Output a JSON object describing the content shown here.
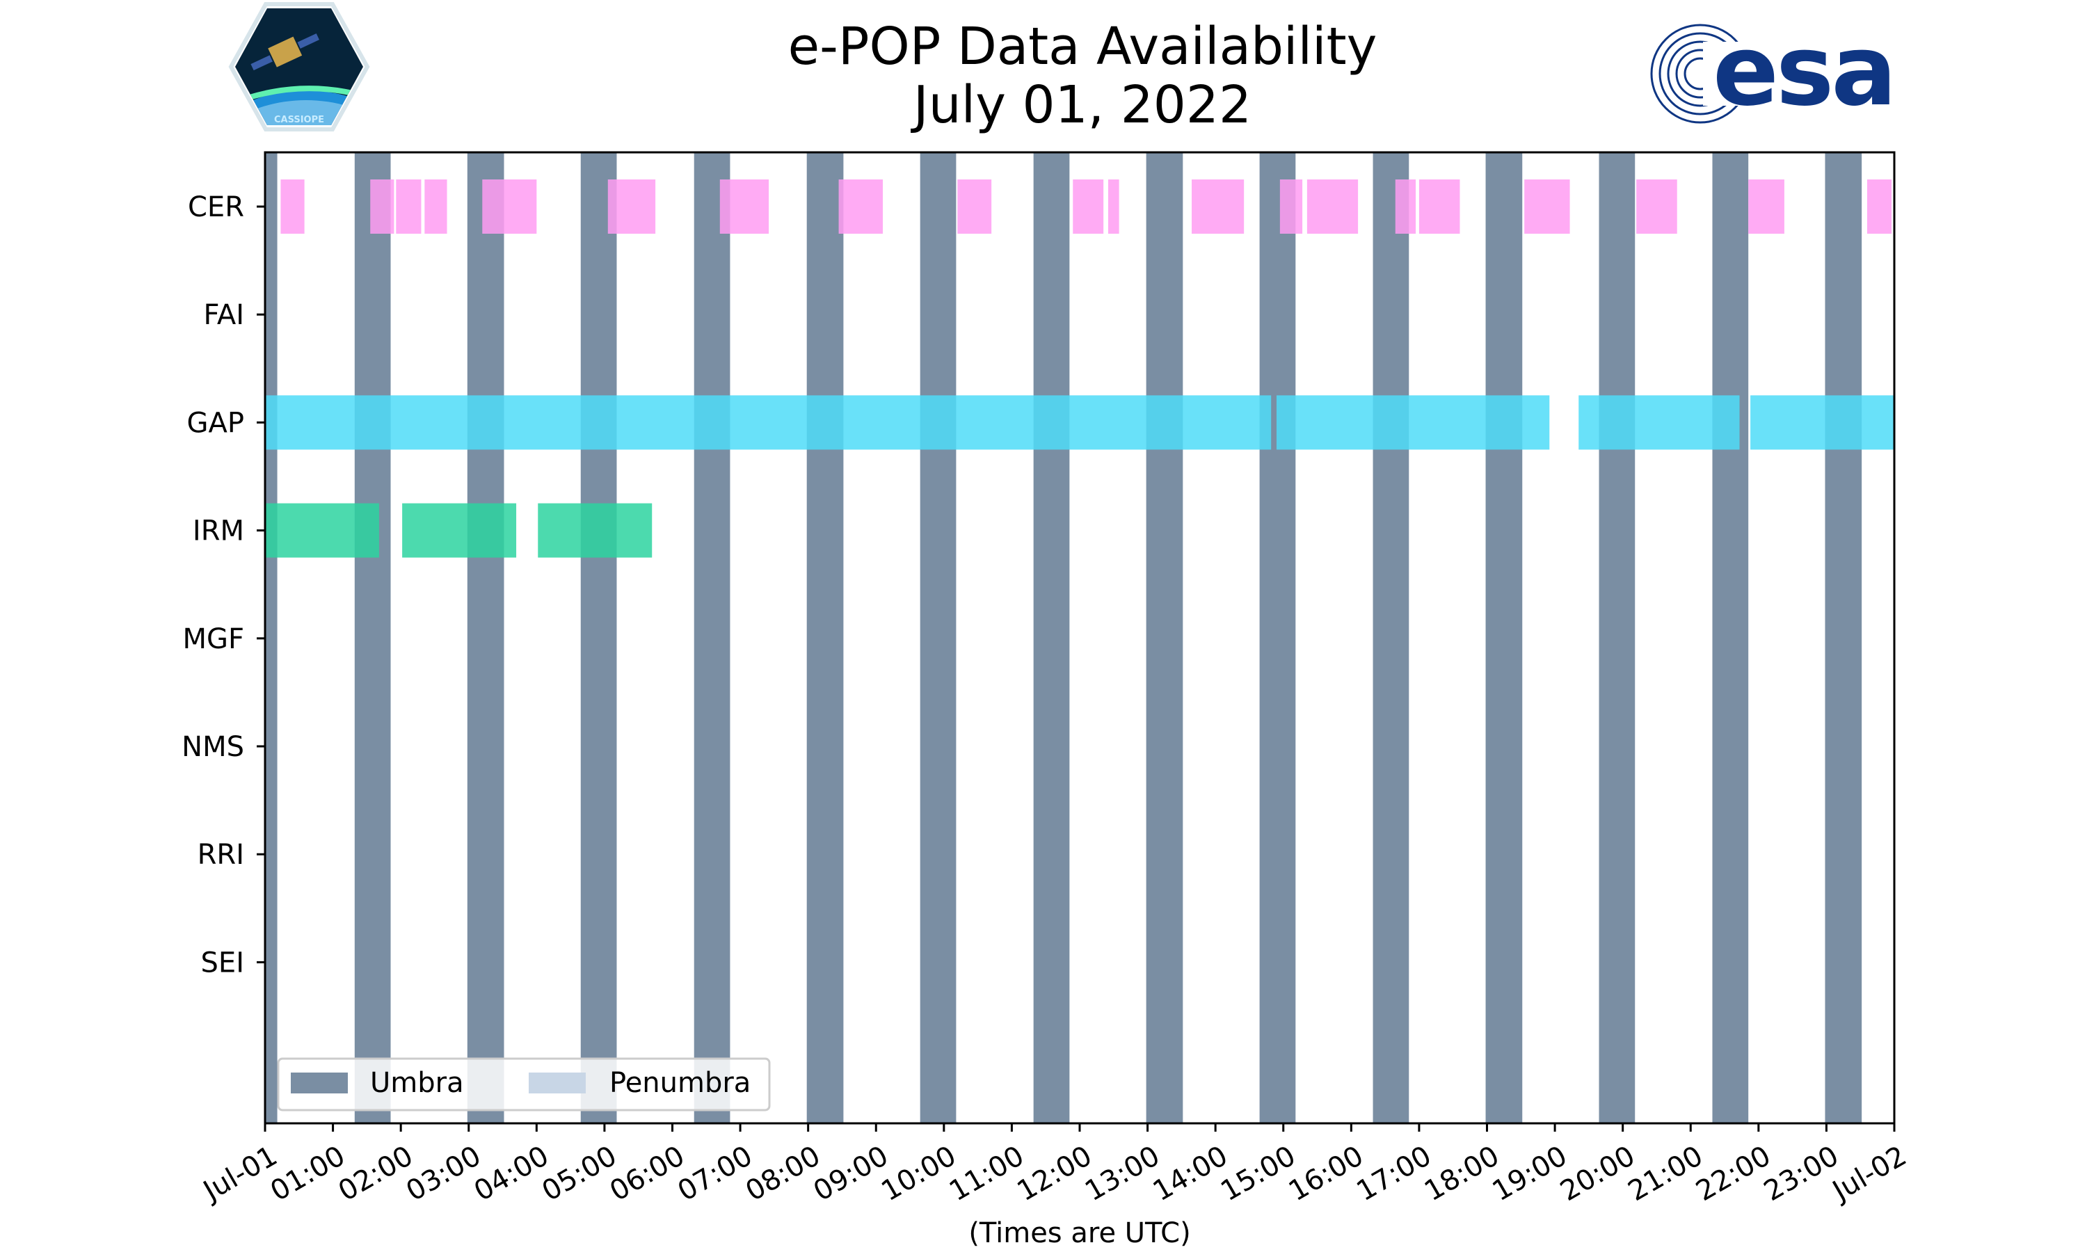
{
  "chart_data": {
    "type": "timeline",
    "title_line1": "e-POP Data Availability",
    "title_line2": "July 01, 2022",
    "xlabel": "(Times are UTC)",
    "x_unit": "hours since 2022-07-01 00:00 UTC",
    "xlim": [
      0,
      24
    ],
    "x_ticks": [
      {
        "value": 0,
        "label": "Jul-01"
      },
      {
        "value": 1,
        "label": "01:00"
      },
      {
        "value": 2,
        "label": "02:00"
      },
      {
        "value": 3,
        "label": "03:00"
      },
      {
        "value": 4,
        "label": "04:00"
      },
      {
        "value": 5,
        "label": "05:00"
      },
      {
        "value": 6,
        "label": "06:00"
      },
      {
        "value": 7,
        "label": "07:00"
      },
      {
        "value": 8,
        "label": "08:00"
      },
      {
        "value": 9,
        "label": "09:00"
      },
      {
        "value": 10,
        "label": "10:00"
      },
      {
        "value": 11,
        "label": "11:00"
      },
      {
        "value": 12,
        "label": "12:00"
      },
      {
        "value": 13,
        "label": "13:00"
      },
      {
        "value": 14,
        "label": "14:00"
      },
      {
        "value": 15,
        "label": "15:00"
      },
      {
        "value": 16,
        "label": "16:00"
      },
      {
        "value": 17,
        "label": "17:00"
      },
      {
        "value": 18,
        "label": "18:00"
      },
      {
        "value": 19,
        "label": "19:00"
      },
      {
        "value": 20,
        "label": "20:00"
      },
      {
        "value": 21,
        "label": "21:00"
      },
      {
        "value": 22,
        "label": "22:00"
      },
      {
        "value": 23,
        "label": "23:00"
      },
      {
        "value": 24,
        "label": "Jul-02"
      }
    ],
    "instruments": [
      "CER",
      "FAI",
      "GAP",
      "IRM",
      "MGF",
      "NMS",
      "RRI",
      "SEI"
    ],
    "legend": {
      "position": "lower-left",
      "entries": [
        {
          "label": "Umbra",
          "color": "#7a8ea3"
        },
        {
          "label": "Penumbra",
          "color": "#c8d6e6"
        }
      ]
    },
    "umbra_intervals": [
      [
        0.0,
        0.18
      ],
      [
        1.32,
        1.85
      ],
      [
        2.98,
        3.52
      ],
      [
        4.65,
        5.18
      ],
      [
        6.32,
        6.85
      ],
      [
        7.98,
        8.52
      ],
      [
        9.65,
        10.18
      ],
      [
        11.32,
        11.85
      ],
      [
        12.98,
        13.52
      ],
      [
        14.65,
        15.18
      ],
      [
        16.32,
        16.85
      ],
      [
        17.98,
        18.52
      ],
      [
        19.65,
        20.18
      ],
      [
        21.32,
        21.85
      ],
      [
        22.98,
        23.52
      ]
    ],
    "series": [
      {
        "name": "CER",
        "color": "#ff9cf2",
        "intervals": [
          [
            0.23,
            0.58
          ],
          [
            1.55,
            1.9
          ],
          [
            1.93,
            2.3
          ],
          [
            2.35,
            2.68
          ],
          [
            3.2,
            4.0
          ],
          [
            5.05,
            5.75
          ],
          [
            6.7,
            7.42
          ],
          [
            8.45,
            9.1
          ],
          [
            10.2,
            10.7
          ],
          [
            11.9,
            12.35
          ],
          [
            12.42,
            12.58
          ],
          [
            13.65,
            14.42
          ],
          [
            14.95,
            15.28
          ],
          [
            15.35,
            16.1
          ],
          [
            16.65,
            16.95
          ],
          [
            17.0,
            17.6
          ],
          [
            18.55,
            19.22
          ],
          [
            20.2,
            20.8
          ],
          [
            21.85,
            22.38
          ],
          [
            23.6,
            23.96
          ]
        ]
      },
      {
        "name": "FAI",
        "color": "#b39ddb",
        "intervals": []
      },
      {
        "name": "GAP",
        "color": "#4fdcf8",
        "intervals": [
          [
            0.0,
            14.82
          ],
          [
            14.9,
            18.92
          ],
          [
            19.35,
            21.72
          ],
          [
            21.88,
            24.0
          ]
        ]
      },
      {
        "name": "IRM",
        "color": "#2dd4a0",
        "intervals": [
          [
            0.0,
            1.68
          ],
          [
            2.02,
            3.7
          ],
          [
            4.02,
            5.7
          ]
        ]
      },
      {
        "name": "MGF",
        "color": "#9ccc65",
        "intervals": []
      },
      {
        "name": "NMS",
        "color": "#ffb74d",
        "intervals": []
      },
      {
        "name": "RRI",
        "color": "#e57373",
        "intervals": []
      },
      {
        "name": "SEI",
        "color": "#64b5f6",
        "intervals": []
      }
    ]
  },
  "logos": {
    "left": {
      "name": "CASSIOPE",
      "caption": "CASSIOPE",
      "colors": {
        "frame": "#d7e4ea",
        "space": "#06243a",
        "earth": "#1e8fd8",
        "aurora": "#5ff0b0"
      }
    },
    "right": {
      "name": "esa",
      "wordmark": "esa",
      "color": "#0f3683"
    }
  }
}
